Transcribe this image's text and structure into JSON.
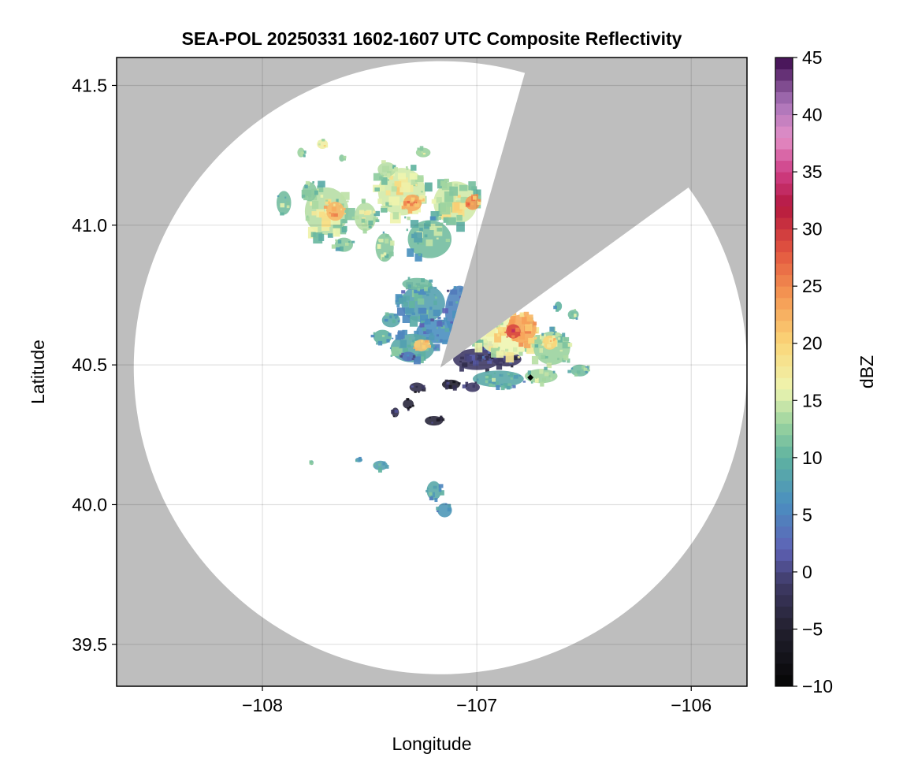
{
  "chart_data": {
    "type": "heatmap",
    "title": "SEA-POL 20250331 1602-1607 UTC Composite Reflectivity",
    "xlabel": "Longitude",
    "ylabel": "Latitude",
    "xlim": [
      -108.68,
      -105.74
    ],
    "ylim": [
      39.35,
      41.6
    ],
    "xticks": [
      -108,
      -107,
      -106
    ],
    "xtick_labels": [
      "−108",
      "−107",
      "−106"
    ],
    "yticks": [
      39.5,
      40.0,
      40.5,
      41.0,
      41.5
    ],
    "ytick_labels": [
      "39.5",
      "40.0",
      "40.5",
      "41.0",
      "41.5"
    ],
    "grid": true,
    "radar_center": {
      "lon": -107.17,
      "lat": 40.49
    },
    "radar_range_lon": 1.43,
    "blocked_sectors_deg_from_north": [
      [
        16,
        54
      ]
    ],
    "no_data_color": "#bebebe",
    "colorbar": {
      "label": "dBZ",
      "min": -10,
      "max": 45,
      "ticks": [
        -10,
        -5,
        0,
        5,
        10,
        15,
        20,
        25,
        30,
        35,
        40,
        45
      ],
      "tick_labels": [
        "−10",
        "−5",
        "0",
        "5",
        "10",
        "15",
        "20",
        "25",
        "30",
        "35",
        "40",
        "45"
      ],
      "colormap_stops": [
        [
          -10,
          "#050505"
        ],
        [
          -5,
          "#22202e"
        ],
        [
          -1,
          "#3f3a66"
        ],
        [
          2,
          "#5e62b6"
        ],
        [
          6,
          "#4a8fc0"
        ],
        [
          10,
          "#5fb2a0"
        ],
        [
          13,
          "#9bd39f"
        ],
        [
          16,
          "#eef5b0"
        ],
        [
          20,
          "#fbd679"
        ],
        [
          24,
          "#f59a54"
        ],
        [
          28,
          "#e3563f"
        ],
        [
          32,
          "#b5183f"
        ],
        [
          35,
          "#cf3e86"
        ],
        [
          38,
          "#e38fc7"
        ],
        [
          41,
          "#a873b8"
        ],
        [
          45,
          "#3d0a4e"
        ]
      ]
    },
    "echo_cells": [
      {
        "lon": -107.25,
        "lat": 40.72,
        "rlon": 0.12,
        "rlat": 0.08,
        "dbz": 11,
        "n": 40
      },
      {
        "lon": -107.08,
        "lat": 40.69,
        "rlon": 0.08,
        "rlat": 0.11,
        "dbz": 8,
        "n": 30
      },
      {
        "lon": -107.18,
        "lat": 40.62,
        "rlon": 0.12,
        "rlat": 0.05,
        "dbz": 9,
        "n": 30
      },
      {
        "lon": -107.3,
        "lat": 40.56,
        "rlon": 0.12,
        "rlat": 0.06,
        "dbz": 12,
        "n": 30
      },
      {
        "lon": -107.26,
        "lat": 40.57,
        "rlon": 0.04,
        "rlat": 0.025,
        "dbz": 24,
        "n": 10
      },
      {
        "lon": -107.32,
        "lat": 40.53,
        "rlon": 0.04,
        "rlat": 0.02,
        "dbz": 7,
        "n": 6
      },
      {
        "lon": -107.44,
        "lat": 40.6,
        "rlon": 0.05,
        "rlat": 0.03,
        "dbz": 13,
        "n": 8
      },
      {
        "lon": -107.4,
        "lat": 40.66,
        "rlon": 0.05,
        "rlat": 0.03,
        "dbz": 12,
        "n": 8
      },
      {
        "lon": -107.28,
        "lat": 40.79,
        "rlon": 0.08,
        "rlat": 0.025,
        "dbz": 14,
        "n": 10
      },
      {
        "lon": -107.35,
        "lat": 41.12,
        "rlon": 0.13,
        "rlat": 0.1,
        "dbz": 18,
        "n": 50
      },
      {
        "lon": -107.3,
        "lat": 41.08,
        "rlon": 0.05,
        "rlat": 0.035,
        "dbz": 26,
        "n": 14
      },
      {
        "lon": -107.1,
        "lat": 41.08,
        "rlon": 0.12,
        "rlat": 0.09,
        "dbz": 18,
        "n": 40
      },
      {
        "lon": -107.02,
        "lat": 41.08,
        "rlon": 0.04,
        "rlat": 0.03,
        "dbz": 27,
        "n": 10
      },
      {
        "lon": -107.7,
        "lat": 41.05,
        "rlon": 0.12,
        "rlat": 0.1,
        "dbz": 17,
        "n": 40
      },
      {
        "lon": -107.66,
        "lat": 41.05,
        "rlon": 0.05,
        "rlat": 0.04,
        "dbz": 25,
        "n": 12
      },
      {
        "lon": -107.52,
        "lat": 41.03,
        "rlon": 0.06,
        "rlat": 0.06,
        "dbz": 17,
        "n": 18
      },
      {
        "lon": -107.43,
        "lat": 40.92,
        "rlon": 0.05,
        "rlat": 0.06,
        "dbz": 15,
        "n": 12
      },
      {
        "lon": -107.22,
        "lat": 40.95,
        "rlon": 0.12,
        "rlat": 0.08,
        "dbz": 14,
        "n": 24
      },
      {
        "lon": -107.78,
        "lat": 41.12,
        "rlon": 0.04,
        "rlat": 0.04,
        "dbz": 15,
        "n": 8
      },
      {
        "lon": -107.72,
        "lat": 41.29,
        "rlon": 0.03,
        "rlat": 0.02,
        "dbz": 20,
        "n": 6
      },
      {
        "lon": -107.82,
        "lat": 41.26,
        "rlon": 0.02,
        "rlat": 0.02,
        "dbz": 16,
        "n": 3
      },
      {
        "lon": -107.63,
        "lat": 41.24,
        "rlon": 0.015,
        "rlat": 0.015,
        "dbz": 15,
        "n": 2
      },
      {
        "lon": -107.25,
        "lat": 41.26,
        "rlon": 0.04,
        "rlat": 0.02,
        "dbz": 16,
        "n": 6
      },
      {
        "lon": -107.42,
        "lat": 41.2,
        "rlon": 0.05,
        "rlat": 0.03,
        "dbz": 17,
        "n": 8
      },
      {
        "lon": -107.9,
        "lat": 41.08,
        "rlon": 0.04,
        "rlat": 0.05,
        "dbz": 14,
        "n": 6
      },
      {
        "lon": -107.62,
        "lat": 40.93,
        "rlon": 0.05,
        "rlat": 0.03,
        "dbz": 15,
        "n": 8
      },
      {
        "lon": -107.0,
        "lat": 40.52,
        "rlon": 0.13,
        "rlat": 0.045,
        "dbz": 2,
        "n": 30
      },
      {
        "lon": -106.86,
        "lat": 40.52,
        "rlon": 0.08,
        "rlat": 0.03,
        "dbz": 2,
        "n": 18
      },
      {
        "lon": -106.95,
        "lat": 40.56,
        "rlon": 0.05,
        "rlat": 0.02,
        "dbz": 3,
        "n": 8
      },
      {
        "lon": -106.86,
        "lat": 40.6,
        "rlon": 0.15,
        "rlat": 0.08,
        "dbz": 19,
        "n": 50
      },
      {
        "lon": -106.79,
        "lat": 40.63,
        "rlon": 0.08,
        "rlat": 0.06,
        "dbz": 26,
        "n": 22
      },
      {
        "lon": -106.83,
        "lat": 40.62,
        "rlon": 0.04,
        "rlat": 0.03,
        "dbz": 32,
        "n": 8
      },
      {
        "lon": -106.65,
        "lat": 40.56,
        "rlon": 0.1,
        "rlat": 0.07,
        "dbz": 16,
        "n": 30
      },
      {
        "lon": -106.66,
        "lat": 40.58,
        "rlon": 0.04,
        "rlat": 0.03,
        "dbz": 23,
        "n": 8
      },
      {
        "lon": -106.9,
        "lat": 40.45,
        "rlon": 0.14,
        "rlat": 0.035,
        "dbz": 12,
        "n": 30
      },
      {
        "lon": -106.7,
        "lat": 40.46,
        "rlon": 0.09,
        "rlat": 0.03,
        "dbz": 16,
        "n": 14
      },
      {
        "lon": -106.52,
        "lat": 40.48,
        "rlon": 0.05,
        "rlat": 0.025,
        "dbz": 14,
        "n": 10
      },
      {
        "lon": -106.55,
        "lat": 40.68,
        "rlon": 0.03,
        "rlat": 0.02,
        "dbz": 14,
        "n": 5
      },
      {
        "lon": -106.62,
        "lat": 40.71,
        "rlon": 0.02,
        "rlat": 0.02,
        "dbz": 13,
        "n": 3
      },
      {
        "lon": -107.12,
        "lat": 40.43,
        "rlon": 0.05,
        "rlat": 0.02,
        "dbz": -2,
        "n": 10
      },
      {
        "lon": -107.28,
        "lat": 40.42,
        "rlon": 0.04,
        "rlat": 0.02,
        "dbz": 0,
        "n": 6
      },
      {
        "lon": -107.02,
        "lat": 40.42,
        "rlon": 0.04,
        "rlat": 0.02,
        "dbz": 2,
        "n": 6
      },
      {
        "lon": -107.32,
        "lat": 40.36,
        "rlon": 0.03,
        "rlat": 0.02,
        "dbz": -1,
        "n": 5
      },
      {
        "lon": -107.2,
        "lat": 40.3,
        "rlon": 0.05,
        "rlat": 0.02,
        "dbz": -1,
        "n": 6
      },
      {
        "lon": -107.38,
        "lat": 40.33,
        "rlon": 0.02,
        "rlat": 0.02,
        "dbz": 0,
        "n": 3
      },
      {
        "lon": -107.2,
        "lat": 40.05,
        "rlon": 0.04,
        "rlat": 0.04,
        "dbz": 12,
        "n": 10
      },
      {
        "lon": -107.15,
        "lat": 39.98,
        "rlon": 0.04,
        "rlat": 0.03,
        "dbz": 10,
        "n": 6
      },
      {
        "lon": -107.45,
        "lat": 40.14,
        "rlon": 0.04,
        "rlat": 0.02,
        "dbz": 11,
        "n": 5
      },
      {
        "lon": -107.77,
        "lat": 40.15,
        "rlon": 0.01,
        "rlat": 0.01,
        "dbz": 12,
        "n": 2
      },
      {
        "lon": -107.55,
        "lat": 40.16,
        "rlon": 0.02,
        "rlat": 0.01,
        "dbz": 10,
        "n": 3
      }
    ],
    "marker": {
      "lon": -106.75,
      "lat": 40.455,
      "shape": "diamond",
      "color": "#000000"
    }
  }
}
